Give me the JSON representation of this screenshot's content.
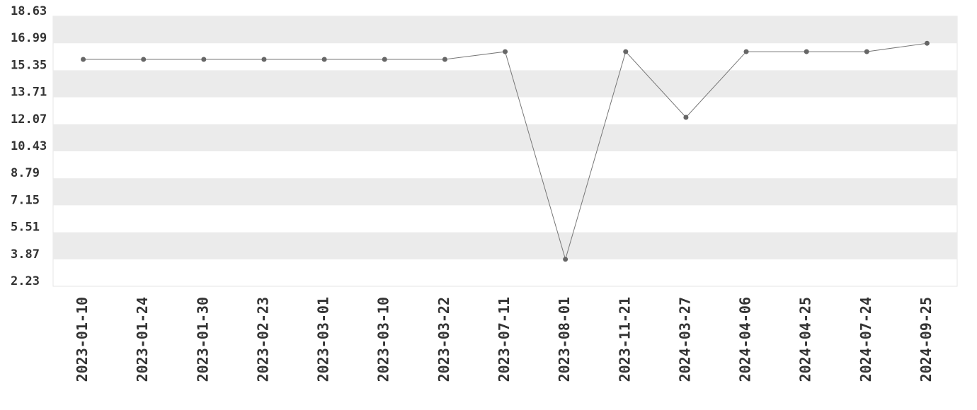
{
  "chart_data": {
    "type": "line",
    "categories": [
      "2023-01-10",
      "2023-01-24",
      "2023-01-30",
      "2023-02-23",
      "2023-03-01",
      "2023-03-10",
      "2023-03-22",
      "2023-07-11",
      "2023-08-01",
      "2023-11-21",
      "2024-03-27",
      "2024-04-06",
      "2024-04-25",
      "2024-07-24",
      "2024-09-25"
    ],
    "values": [
      16.01,
      16.01,
      16.01,
      16.01,
      16.01,
      16.01,
      16.01,
      16.48,
      3.87,
      16.48,
      12.49,
      16.48,
      16.48,
      16.48,
      16.99
    ],
    "color": "#777777",
    "ylim": [
      2.23,
      18.63
    ],
    "yticks": [
      2.23,
      3.87,
      5.51,
      7.15,
      8.79,
      10.43,
      12.07,
      13.71,
      15.35,
      16.99,
      18.63
    ],
    "grid": true
  }
}
